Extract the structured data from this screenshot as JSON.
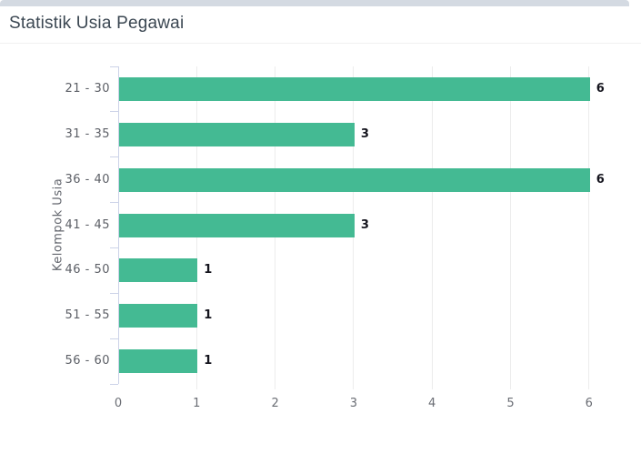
{
  "panel": {
    "title": "Statistik Usia Pegawai"
  },
  "chart_data": {
    "type": "bar",
    "orientation": "horizontal",
    "title": "Statistik Usia Pegawai",
    "categories": [
      "21 - 30",
      "31 - 35",
      "36 - 40",
      "41 - 45",
      "46 - 50",
      "51 - 55",
      "56 - 60"
    ],
    "values": [
      6,
      3,
      6,
      3,
      1,
      1,
      1
    ],
    "value_labels": [
      "6",
      "3",
      "6",
      "3",
      "1",
      "1",
      "1"
    ],
    "xlabel": "",
    "ylabel": "Kelompok Usia",
    "xticks": [
      "0",
      "1",
      "2",
      "3",
      "4",
      "5",
      "6"
    ],
    "xlim": [
      0,
      6.4
    ],
    "grid": true,
    "legend": "none",
    "bar_color": "#44ba93"
  },
  "colors": {
    "bar": "#44ba93",
    "accent_bar": "#d4dae2",
    "title_text": "#3b4752",
    "axis_line": "#ccd3e8",
    "gridline": "#ececec",
    "category_label": "#5c5f66",
    "value_label": "#14141d",
    "x_tick_label": "#6a6d74"
  }
}
